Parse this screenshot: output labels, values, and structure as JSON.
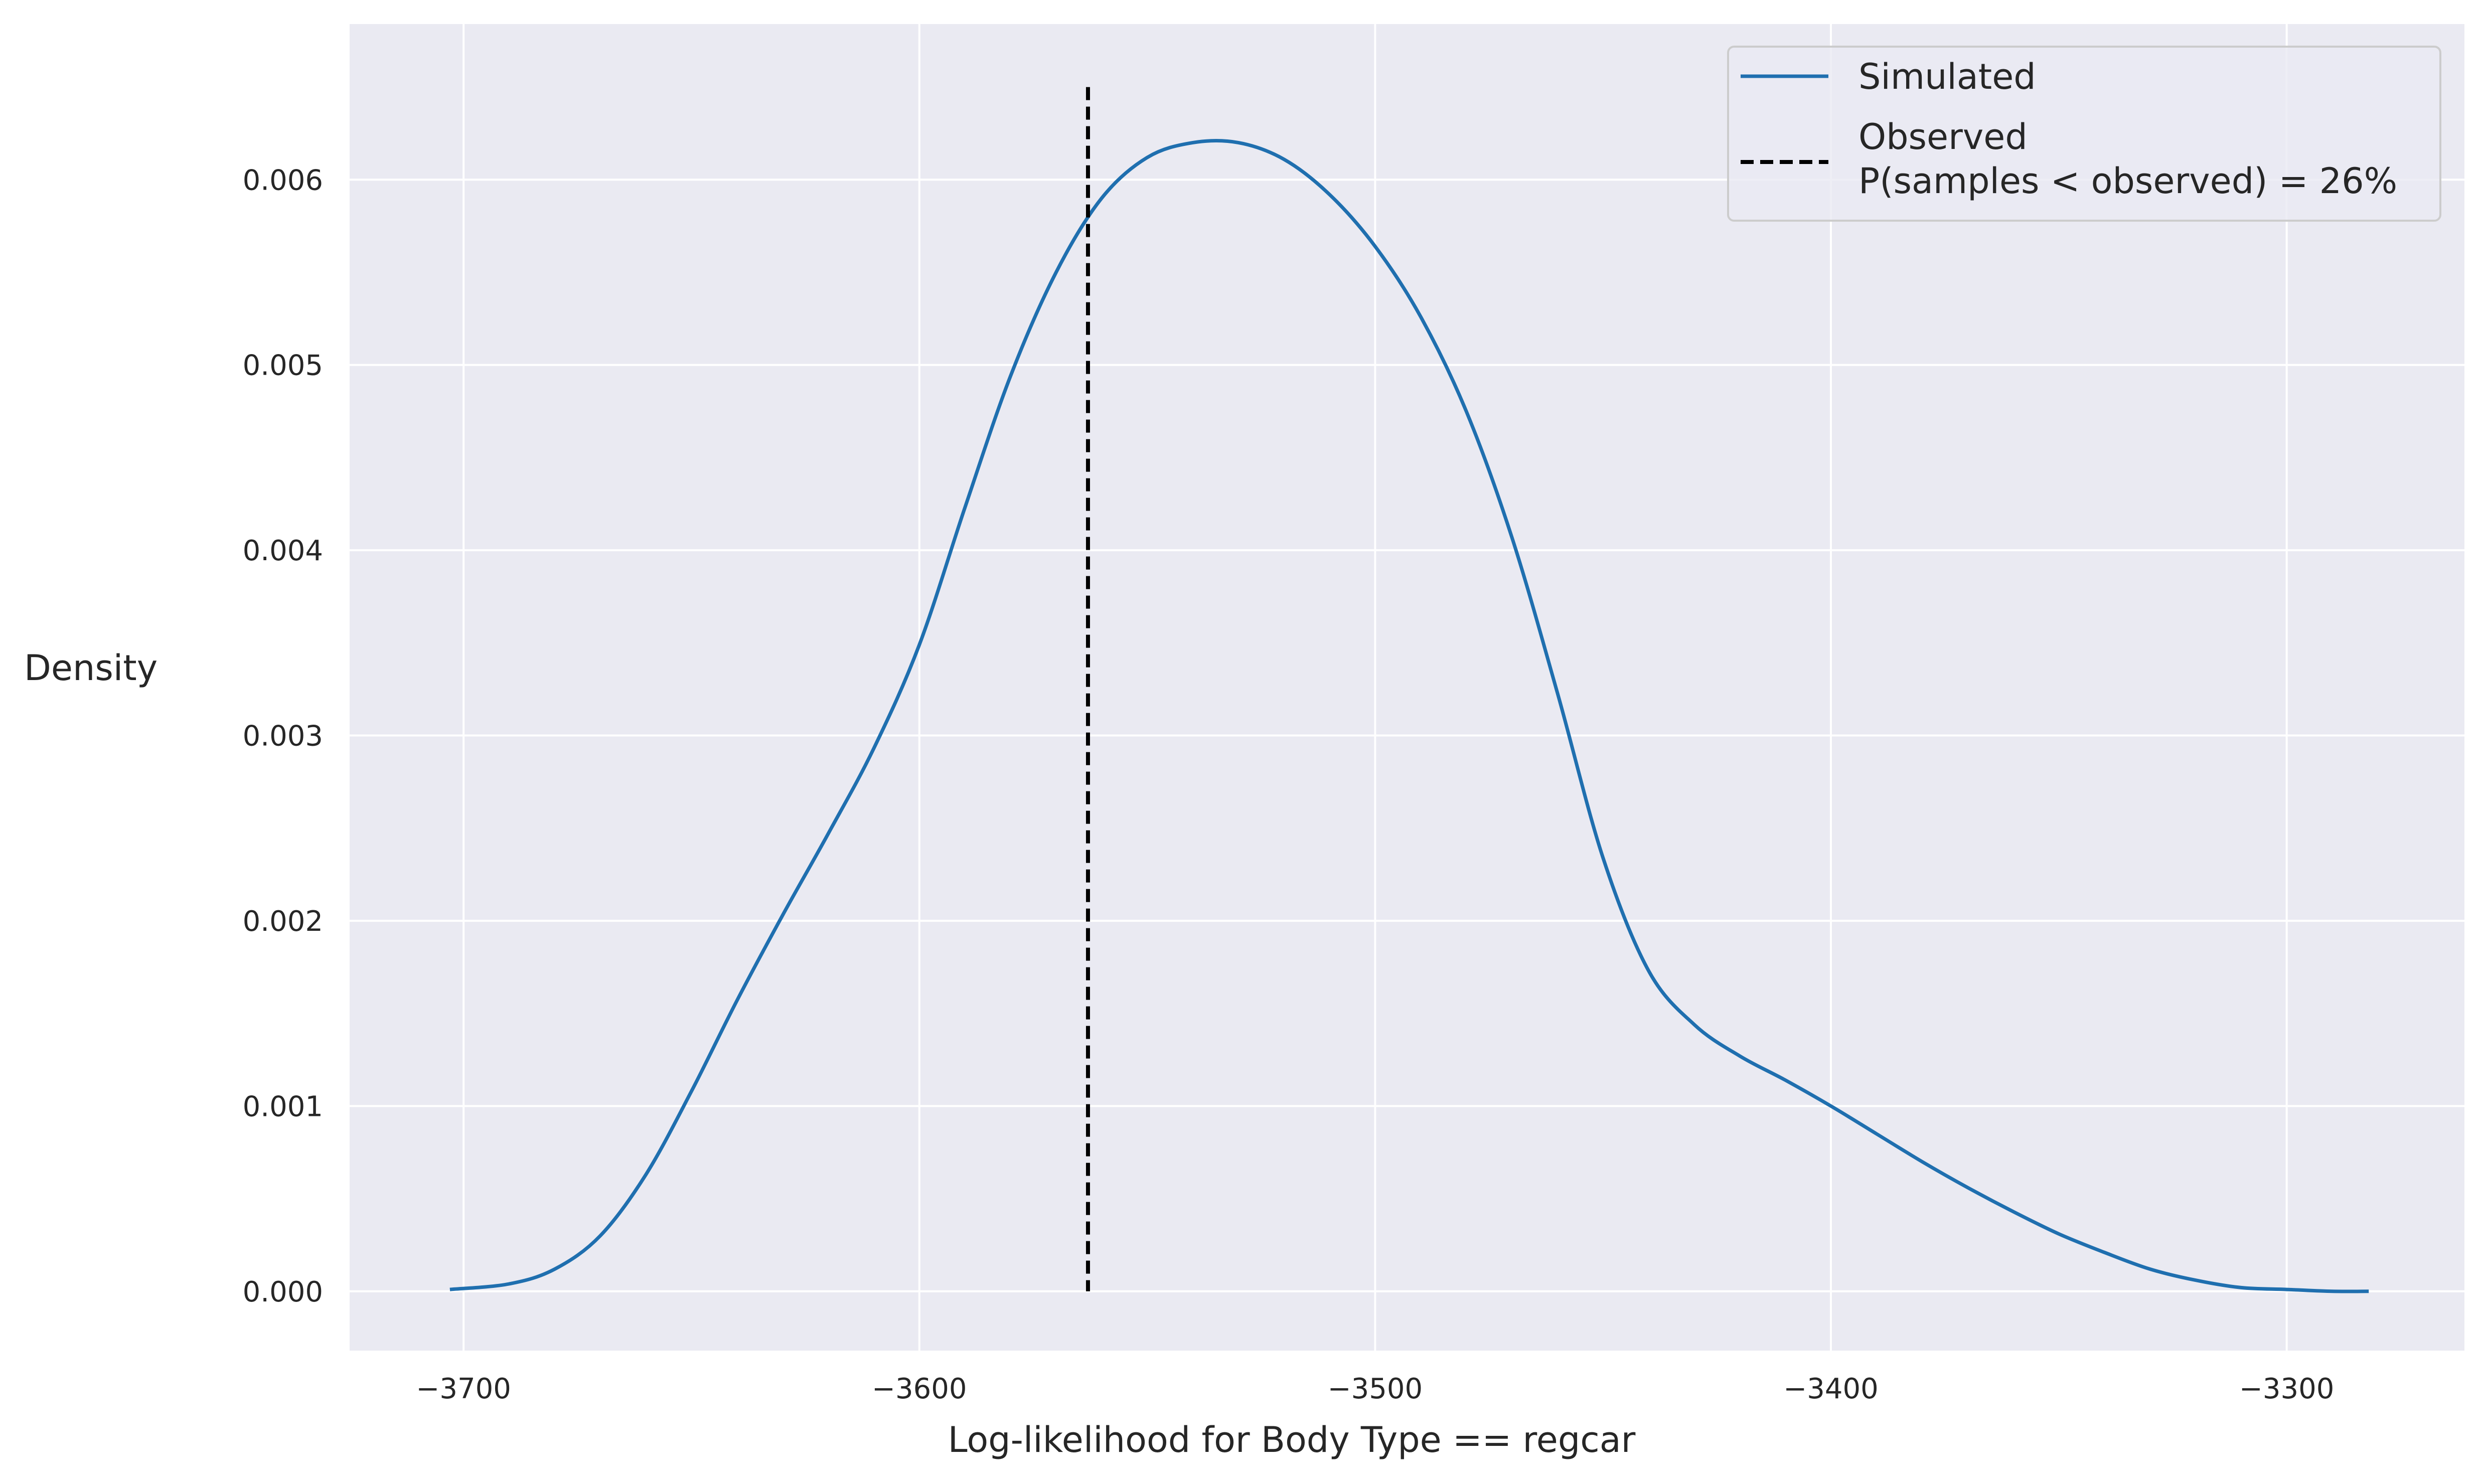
{
  "chart_data": {
    "type": "line",
    "title": "",
    "xlabel": "Log-likelihood for Body Type == regcar",
    "ylabel": "Density",
    "xlim": [
      -3725,
      -3261
    ],
    "ylim": [
      -0.00032,
      0.00684
    ],
    "x_ticks": [
      -3700,
      -3600,
      -3500,
      -3400,
      -3300
    ],
    "x_tick_labels": [
      "−3700",
      "−3600",
      "−3500",
      "−3400",
      "−3300"
    ],
    "y_ticks": [
      0.0,
      0.001,
      0.002,
      0.003,
      0.004,
      0.005,
      0.006
    ],
    "y_tick_labels": [
      "0.000",
      "0.001",
      "0.002",
      "0.003",
      "0.004",
      "0.005",
      "0.006"
    ],
    "grid": true,
    "legend_position": "top-right",
    "series": [
      {
        "name": "Simulated",
        "style": "solid",
        "color": "#1f6faf",
        "x": [
          -3703,
          -3690,
          -3680,
          -3670,
          -3660,
          -3650,
          -3640,
          -3630,
          -3620,
          -3610,
          -3600,
          -3590,
          -3580,
          -3570,
          -3560,
          -3550,
          -3540,
          -3530,
          -3520,
          -3510,
          -3500,
          -3490,
          -3480,
          -3470,
          -3460,
          -3450,
          -3440,
          -3430,
          -3420,
          -3410,
          -3400,
          -3390,
          -3380,
          -3370,
          -3360,
          -3350,
          -3340,
          -3330,
          -3320,
          -3310,
          -3300,
          -3290,
          -3282
        ],
        "y": [
          1e-05,
          4e-05,
          0.00012,
          0.0003,
          0.00063,
          0.00108,
          0.00157,
          0.00203,
          0.00247,
          0.00293,
          0.00349,
          0.00423,
          0.00494,
          0.0055,
          0.0059,
          0.00612,
          0.0062,
          0.0062,
          0.00611,
          0.00592,
          0.00564,
          0.00526,
          0.00475,
          0.00407,
          0.00323,
          0.00234,
          0.00173,
          0.00144,
          0.00127,
          0.00114,
          0.001,
          0.00085,
          0.0007,
          0.00056,
          0.00043,
          0.00031,
          0.00021,
          0.00012,
          6e-05,
          2e-05,
          1e-05,
          0.0,
          0.0
        ]
      }
    ],
    "observed_line": {
      "name": "Observed",
      "x": -3563,
      "y_range": [
        0.0,
        0.0065
      ],
      "style": "dashed",
      "color": "#000000"
    },
    "annotation": "P(samples < observed) = 26%",
    "colors": {
      "plot_background": "#eaeaf2",
      "grid": "#ffffff",
      "legend_background": "#eaeaf2",
      "legend_border": "#cccccc"
    }
  }
}
